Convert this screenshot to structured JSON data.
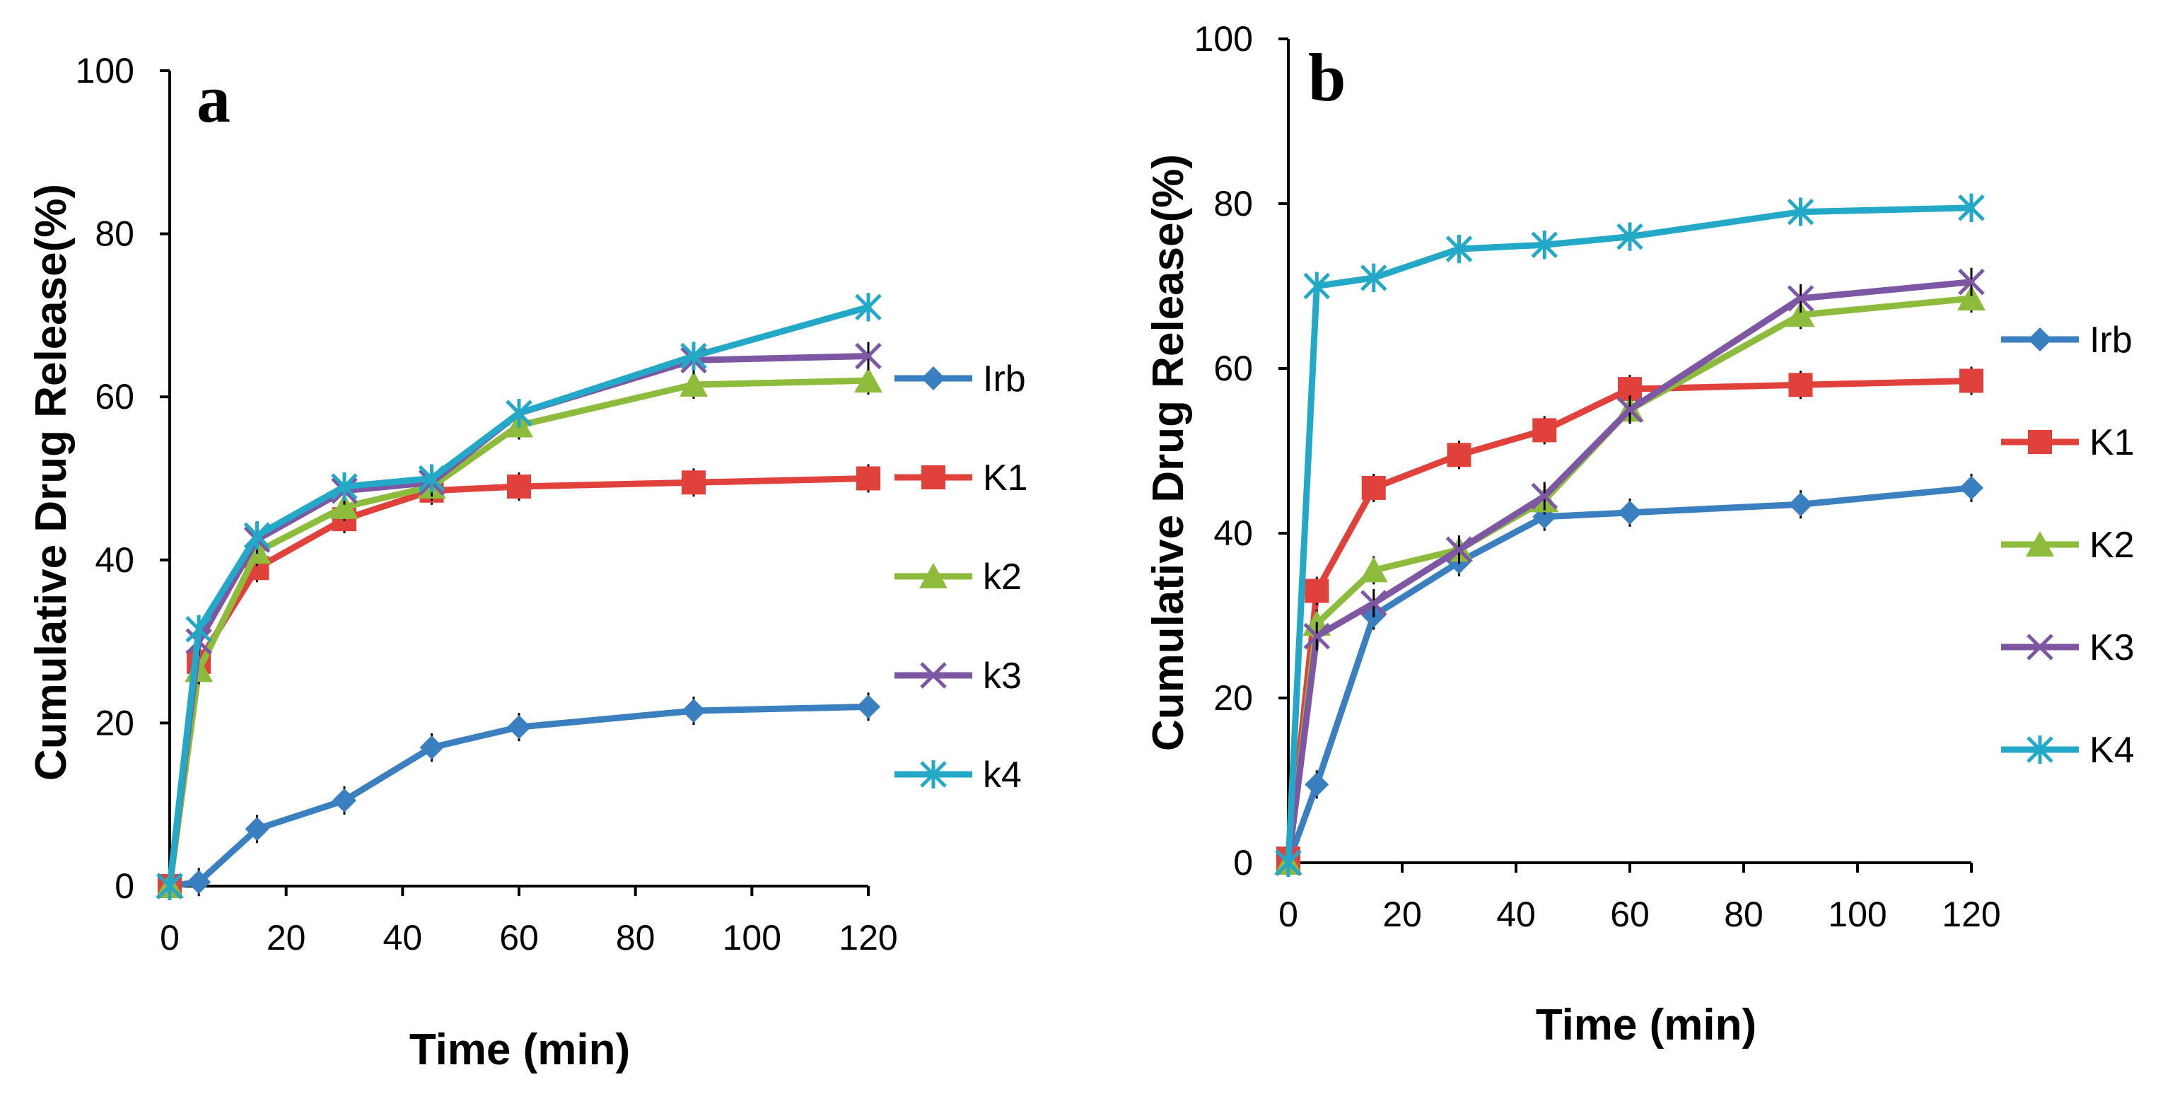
{
  "chart_data": [
    {
      "type": "line",
      "panel_label": "a",
      "title": "",
      "xlabel": "Time (min)",
      "ylabel": "Cumulative Drug Release(%)",
      "xlim": [
        0,
        120
      ],
      "ylim": [
        0,
        100
      ],
      "x_ticks": [
        0,
        20,
        40,
        60,
        80,
        100,
        120
      ],
      "y_ticks": [
        0,
        20,
        40,
        60,
        80,
        100
      ],
      "x_tick_labels": [
        "0",
        "20",
        "40",
        "60",
        "80",
        "100",
        "120"
      ],
      "y_tick_labels": [
        "0",
        "20",
        "40",
        "60",
        "80",
        "100"
      ],
      "grid": false,
      "legend_position": "right",
      "series": [
        {
          "name": "Irb",
          "color": "#3a7fc0",
          "marker": "diamond",
          "x": [
            0,
            5,
            15,
            30,
            45,
            60,
            90,
            120
          ],
          "y": [
            0,
            0.5,
            7,
            10.5,
            17,
            19.5,
            21.5,
            22
          ]
        },
        {
          "name": "K1",
          "color": "#e0423b",
          "marker": "square",
          "x": [
            0,
            5,
            15,
            30,
            45,
            60,
            90,
            120
          ],
          "y": [
            0,
            27.5,
            39,
            45,
            48.5,
            49,
            49.5,
            50
          ]
        },
        {
          "name": "k2",
          "color": "#8dbb3c",
          "marker": "triangle",
          "x": [
            0,
            5,
            15,
            30,
            45,
            60,
            90,
            120
          ],
          "y": [
            0,
            26.5,
            41,
            46.5,
            49,
            56.5,
            61.5,
            62
          ]
        },
        {
          "name": "k3",
          "color": "#7e57a4",
          "marker": "x",
          "x": [
            0,
            5,
            15,
            30,
            45,
            60,
            90,
            120
          ],
          "y": [
            0,
            30,
            42.5,
            48.5,
            49.5,
            58,
            64.5,
            65
          ]
        },
        {
          "name": "k4",
          "color": "#23a8c8",
          "marker": "star",
          "x": [
            0,
            5,
            15,
            30,
            45,
            60,
            90,
            120
          ],
          "y": [
            0,
            31.5,
            43,
            49,
            50,
            58,
            65,
            71
          ]
        }
      ]
    },
    {
      "type": "line",
      "panel_label": "b",
      "title": "",
      "xlabel": "Time (min)",
      "ylabel": "Cumulative Drug Release(%)",
      "xlim": [
        0,
        120
      ],
      "ylim": [
        0,
        100
      ],
      "x_ticks": [
        0,
        20,
        40,
        60,
        80,
        100,
        120
      ],
      "y_ticks": [
        0,
        20,
        40,
        60,
        80,
        100
      ],
      "x_tick_labels": [
        "0",
        "20",
        "40",
        "60",
        "80",
        "100",
        "120"
      ],
      "y_tick_labels": [
        "0",
        "20",
        "40",
        "60",
        "80",
        "100"
      ],
      "grid": false,
      "legend_position": "right",
      "series": [
        {
          "name": "Irb",
          "color": "#3a7fc0",
          "marker": "diamond",
          "x": [
            0,
            5,
            15,
            30,
            45,
            60,
            90,
            120
          ],
          "y": [
            0,
            9.5,
            30,
            36.5,
            42,
            42.5,
            43.5,
            45.5
          ]
        },
        {
          "name": "K1",
          "color": "#e0423b",
          "marker": "square",
          "x": [
            0,
            5,
            15,
            30,
            45,
            60,
            90,
            120
          ],
          "y": [
            0.5,
            33,
            45.5,
            49.5,
            52.5,
            57.5,
            58,
            58.5
          ]
        },
        {
          "name": "K2",
          "color": "#8dbb3c",
          "marker": "triangle",
          "x": [
            0,
            5,
            15,
            30,
            45,
            60,
            90,
            120
          ],
          "y": [
            0,
            29,
            35.5,
            38,
            44,
            55,
            66.5,
            68.5
          ]
        },
        {
          "name": "K3",
          "color": "#7e57a4",
          "marker": "x",
          "x": [
            0,
            5,
            15,
            30,
            45,
            60,
            90,
            120
          ],
          "y": [
            0,
            27.5,
            31.5,
            38,
            44.5,
            55,
            68.5,
            70.5
          ]
        },
        {
          "name": "K4",
          "color": "#23a8c8",
          "marker": "star",
          "x": [
            0,
            5,
            15,
            30,
            45,
            60,
            90,
            120
          ],
          "y": [
            0,
            70,
            71,
            74.5,
            75,
            76,
            79,
            79.5
          ]
        }
      ]
    }
  ]
}
